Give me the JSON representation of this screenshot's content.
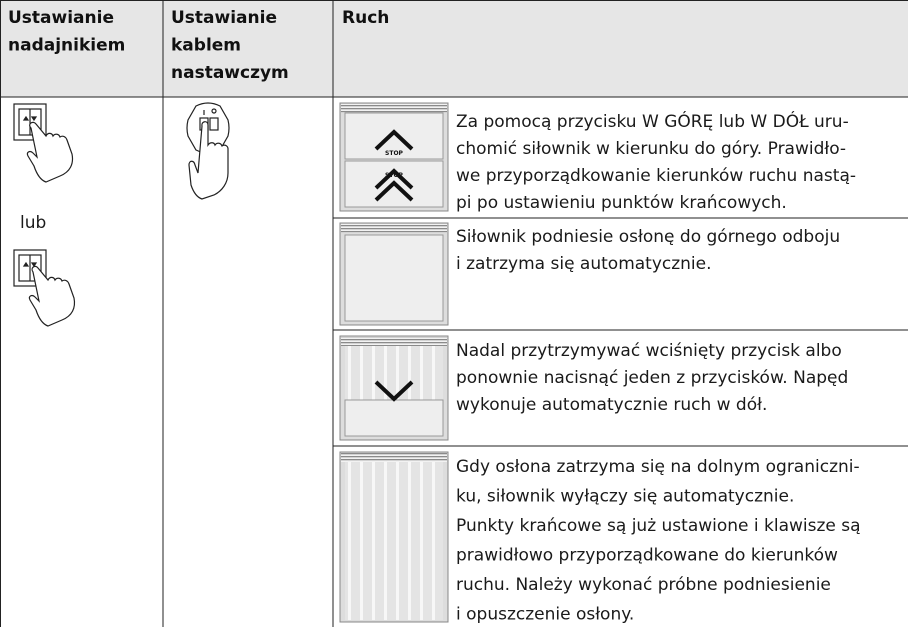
{
  "header": {
    "columns": [
      [
        "Ustawianie",
        "nadajnikiem"
      ],
      [
        "Ustawianie",
        "kablem",
        "nastawczym"
      ],
      [
        "Ruch"
      ]
    ]
  },
  "setting": {
    "or_label": "lub",
    "stop_label": "STOP"
  },
  "rows": [
    {
      "lines": [
        "Za pomocą przycisku W GÓRĘ lub W DÓŁ uru-",
        "chomić siłownik w kierunku do góry. Prawidło-",
        "we przyporządkowanie kierunków ruchu nastą-",
        "pi po ustawieniu punktów krańcowych."
      ]
    },
    {
      "lines": [
        "Siłownik podniesie osłonę do górnego odboju",
        "i zatrzyma się automatycznie."
      ]
    },
    {
      "lines": [
        "Nadal przytrzymywać wciśnięty przycisk albo",
        "ponownie nacisnąć jeden z przycisków. Napęd",
        "wykonuje automatycznie ruch w dół."
      ]
    },
    {
      "lines": [
        "Gdy osłona zatrzyma się na dolnym ograniczni-",
        "ku, siłownik wyłączy się automatycznie.",
        "Punkty krańcowe są już ustawione i klawisze są",
        "prawidłowo przyporządkowane do kierunków",
        "ruchu. Należy wykonać próbne podniesienie",
        "i opuszczenie osłony."
      ]
    }
  ]
}
